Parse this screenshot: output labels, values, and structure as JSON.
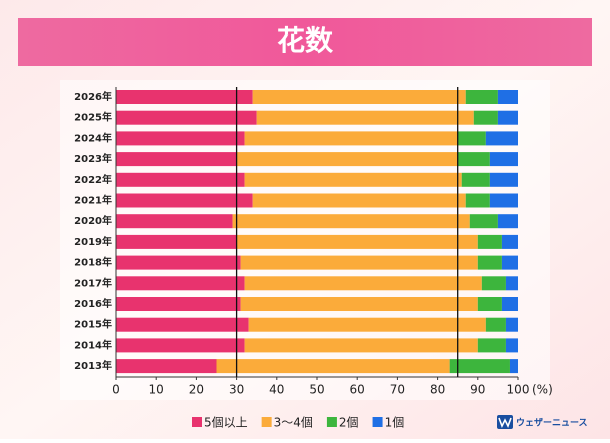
{
  "chart_data": {
    "type": "stacked_bar_horizontal",
    "title": "花数",
    "categories": [
      "2026年",
      "2025年",
      "2024年",
      "2023年",
      "2022年",
      "2021年",
      "2020年",
      "2019年",
      "2018年",
      "2017年",
      "2016年",
      "2015年",
      "2014年",
      "2013年"
    ],
    "series": [
      {
        "name": "5個以上",
        "color": "#e8336e",
        "values": [
          34,
          35,
          32,
          30,
          32,
          34,
          29,
          30,
          31,
          32,
          31,
          33,
          32,
          25
        ]
      },
      {
        "name": "3〜4個",
        "color": "#fbab3a",
        "values": [
          53,
          54,
          53,
          55,
          54,
          53,
          59,
          60,
          59,
          59,
          59,
          59,
          58,
          58
        ]
      },
      {
        "name": "2個",
        "color": "#3db53d",
        "values": [
          8,
          6,
          7,
          8,
          7,
          6,
          7,
          6,
          6,
          6,
          6,
          5,
          7,
          15
        ]
      },
      {
        "name": "1個",
        "color": "#1f6fe5",
        "values": [
          5,
          5,
          8,
          7,
          7,
          7,
          5,
          4,
          4,
          3,
          4,
          3,
          3,
          2
        ]
      }
    ],
    "xlim": [
      0,
      100
    ],
    "xticks": [
      0,
      10,
      20,
      30,
      40,
      50,
      60,
      70,
      80,
      90,
      100
    ],
    "x_label": "(%)",
    "reference_lines": [
      30,
      85
    ],
    "brand": "ウェザーニュース"
  }
}
